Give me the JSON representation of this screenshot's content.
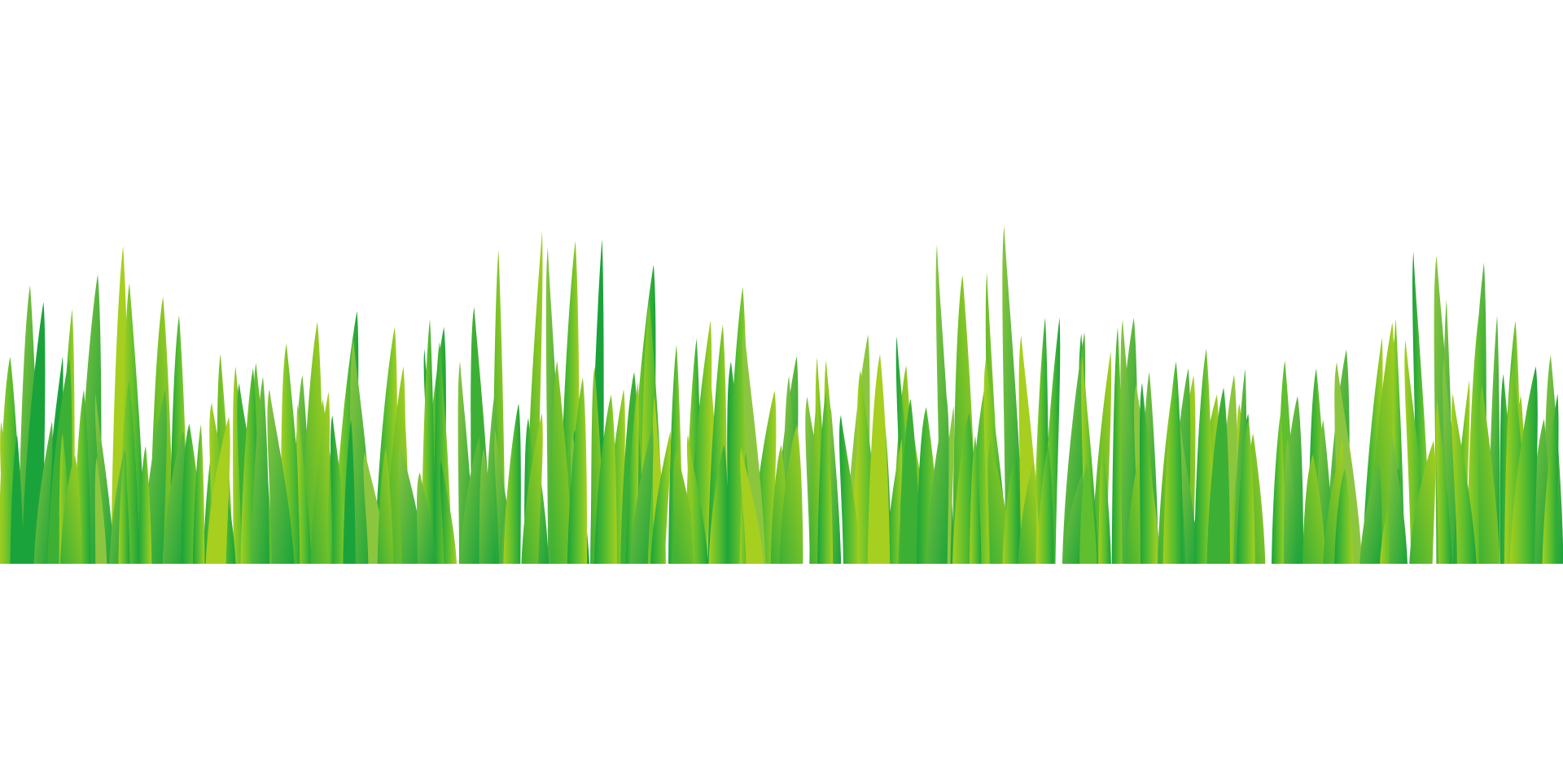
{
  "scene": {
    "subject": "grass-border",
    "background_color": "#ffffff",
    "colors": {
      "deep_green": "#1aa33a",
      "mid_green": "#3cb034",
      "leaf_green": "#5fbf2e",
      "lime": "#8cc63f",
      "yellow_green": "#a6cf1f"
    },
    "layers": [
      {
        "name": "back",
        "blade_count": 60,
        "height_scale": 1.0
      },
      {
        "name": "middle",
        "blade_count": 75,
        "height_scale": 0.8
      },
      {
        "name": "front",
        "blade_count": 85,
        "height_scale": 0.62
      }
    ]
  }
}
